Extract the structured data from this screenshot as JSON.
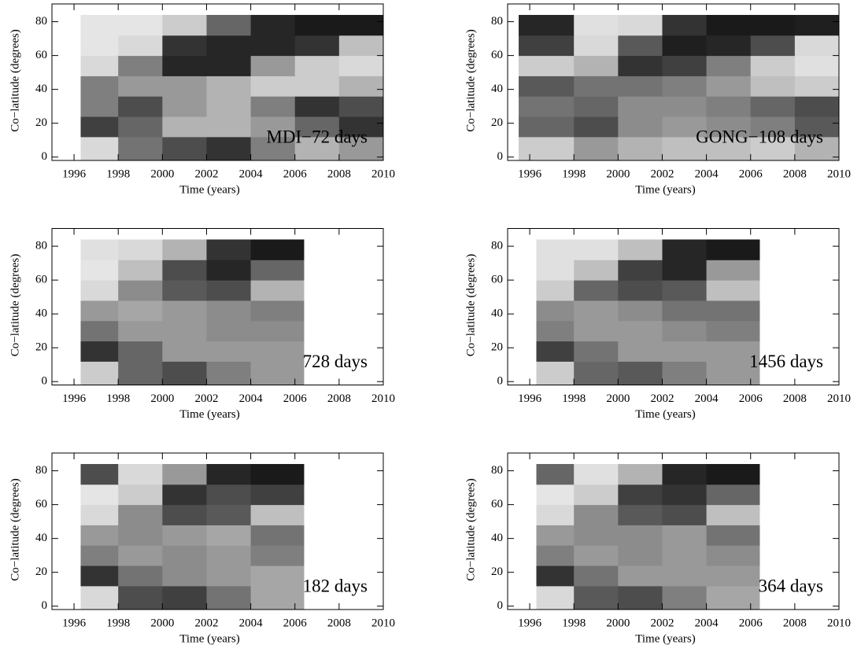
{
  "chart_data": [
    {
      "type": "heatmap",
      "annotation": "MDI−72 days",
      "xlabel": "Time (years)",
      "ylabel": "Co−latitude (degrees)",
      "xlim": [
        1995,
        2010
      ],
      "ylim": [
        -2,
        90.5
      ],
      "xticks": [
        1996,
        1998,
        2000,
        2002,
        2004,
        2006,
        2008,
        2010
      ],
      "yticks": [
        0,
        20,
        40,
        60,
        80
      ],
      "x_edges": [
        1996.3,
        1998,
        2000,
        2002,
        2004,
        2006,
        2008,
        2010
      ],
      "y_edges": [
        -2,
        12,
        24,
        36,
        48,
        60,
        72,
        84
      ],
      "z": [
        [
          85,
          45,
          30,
          20,
          50,
          70,
          60
        ],
        [
          25,
          40,
          70,
          70,
          60,
          40,
          20
        ],
        [
          50,
          30,
          60,
          70,
          50,
          20,
          30
        ],
        [
          50,
          60,
          60,
          70,
          80,
          80,
          70
        ],
        [
          85,
          50,
          15,
          15,
          60,
          80,
          85
        ],
        [
          90,
          85,
          20,
          15,
          15,
          20,
          75
        ],
        [
          90,
          90,
          80,
          40,
          15,
          10,
          10
        ]
      ]
    },
    {
      "type": "heatmap",
      "annotation": "GONG−108 days",
      "xlabel": "Time (years)",
      "ylabel": "Co−latitude (degrees)",
      "xlim": [
        1995,
        2010
      ],
      "ylim": [
        -2,
        90.5
      ],
      "xticks": [
        1996,
        1998,
        2000,
        2002,
        2004,
        2006,
        2008,
        2010
      ],
      "yticks": [
        0,
        20,
        40,
        60,
        80
      ],
      "x_edges": [
        1995.5,
        1998,
        2000,
        2002,
        2004,
        2006,
        2008,
        2010
      ],
      "y_edges": [
        -2,
        12,
        24,
        36,
        48,
        60,
        72,
        84
      ],
      "z": [
        [
          80,
          60,
          70,
          75,
          75,
          80,
          70
        ],
        [
          40,
          30,
          55,
          60,
          55,
          50,
          35
        ],
        [
          45,
          40,
          55,
          55,
          50,
          40,
          30
        ],
        [
          35,
          45,
          45,
          50,
          60,
          75,
          80
        ],
        [
          80,
          70,
          20,
          25,
          50,
          80,
          88
        ],
        [
          25,
          85,
          35,
          12,
          15,
          30,
          85
        ],
        [
          15,
          88,
          85,
          20,
          10,
          10,
          12
        ]
      ]
    },
    {
      "type": "heatmap",
      "annotation": "728 days",
      "xlabel": "Time (years)",
      "ylabel": "Co−latitude (degrees)",
      "xlim": [
        1995,
        2010
      ],
      "ylim": [
        -2,
        90.5
      ],
      "xticks": [
        1996,
        1998,
        2000,
        2002,
        2004,
        2006,
        2008,
        2010
      ],
      "yticks": [
        0,
        20,
        40,
        60,
        80
      ],
      "x_edges": [
        1996.3,
        1998,
        2000,
        2002,
        2004,
        2006.4
      ],
      "y_edges": [
        -2,
        12,
        24,
        36,
        48,
        60,
        72,
        84
      ],
      "z": [
        [
          80,
          40,
          30,
          50,
          60
        ],
        [
          20,
          40,
          60,
          60,
          60
        ],
        [
          45,
          60,
          60,
          55,
          55
        ],
        [
          60,
          65,
          60,
          55,
          50
        ],
        [
          85,
          55,
          35,
          30,
          70
        ],
        [
          90,
          75,
          30,
          15,
          40
        ],
        [
          88,
          85,
          70,
          20,
          10
        ]
      ]
    },
    {
      "type": "heatmap",
      "annotation": "1456 days",
      "xlabel": "Time (years)",
      "ylabel": "Co−latitude (degrees)",
      "xlim": [
        1995,
        2010
      ],
      "ylim": [
        -2,
        90.5
      ],
      "xticks": [
        1996,
        1998,
        2000,
        2002,
        2004,
        2006,
        2008,
        2010
      ],
      "yticks": [
        0,
        20,
        40,
        60,
        80
      ],
      "x_edges": [
        1996.3,
        1998,
        2000,
        2002,
        2004,
        2006.4
      ],
      "y_edges": [
        -2,
        12,
        24,
        36,
        48,
        60,
        72,
        84
      ],
      "z": [
        [
          80,
          40,
          35,
          50,
          60
        ],
        [
          25,
          45,
          60,
          60,
          60
        ],
        [
          50,
          60,
          60,
          55,
          50
        ],
        [
          55,
          60,
          55,
          45,
          45
        ],
        [
          80,
          40,
          30,
          35,
          75
        ],
        [
          88,
          75,
          25,
          15,
          60
        ],
        [
          88,
          88,
          75,
          15,
          10
        ]
      ]
    },
    {
      "type": "heatmap",
      "annotation": "182 days",
      "xlabel": "Time (years)",
      "ylabel": "Co−latitude (degrees)",
      "xlim": [
        1995,
        2010
      ],
      "ylim": [
        -2,
        90.5
      ],
      "xticks": [
        1996,
        1998,
        2000,
        2002,
        2004,
        2006,
        2008,
        2010
      ],
      "yticks": [
        0,
        20,
        40,
        60,
        80
      ],
      "x_edges": [
        1996.3,
        1998,
        2000,
        2002,
        2004,
        2006.4
      ],
      "y_edges": [
        -2,
        12,
        24,
        36,
        48,
        60,
        72,
        84
      ],
      "z": [
        [
          85,
          30,
          25,
          45,
          65
        ],
        [
          20,
          45,
          55,
          60,
          65
        ],
        [
          50,
          60,
          55,
          60,
          50
        ],
        [
          60,
          55,
          60,
          65,
          45
        ],
        [
          85,
          55,
          30,
          35,
          75
        ],
        [
          90,
          80,
          20,
          30,
          25
        ],
        [
          30,
          85,
          60,
          15,
          10
        ]
      ]
    },
    {
      "type": "heatmap",
      "annotation": "364 days",
      "xlabel": "Time (years)",
      "ylabel": "Co−latitude (degrees)",
      "xlim": [
        1995,
        2010
      ],
      "ylim": [
        -2,
        90.5
      ],
      "xticks": [
        1996,
        1998,
        2000,
        2002,
        2004,
        2006,
        2008,
        2010
      ],
      "yticks": [
        0,
        20,
        40,
        60,
        80
      ],
      "x_edges": [
        1996.3,
        1998,
        2000,
        2002,
        2004,
        2006.4
      ],
      "y_edges": [
        -2,
        12,
        24,
        36,
        48,
        60,
        72,
        84
      ],
      "z": [
        [
          85,
          35,
          30,
          50,
          65
        ],
        [
          20,
          45,
          60,
          60,
          60
        ],
        [
          50,
          60,
          55,
          60,
          55
        ],
        [
          60,
          55,
          55,
          60,
          45
        ],
        [
          85,
          55,
          35,
          30,
          75
        ],
        [
          90,
          80,
          25,
          20,
          40
        ],
        [
          40,
          88,
          70,
          15,
          10
        ]
      ]
    }
  ]
}
